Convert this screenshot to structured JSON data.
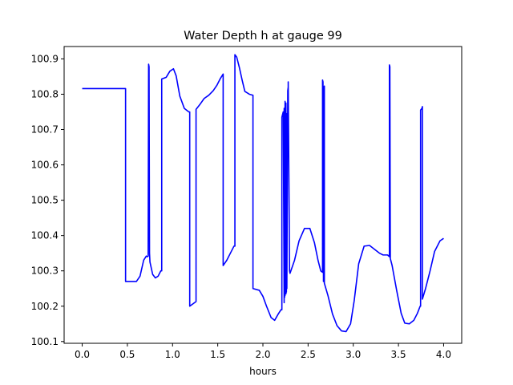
{
  "chart_data": {
    "type": "line",
    "title": "Water Depth h at gauge 99",
    "xlabel": "hours",
    "ylabel": "",
    "xlim": [
      -0.2,
      4.2
    ],
    "ylim": [
      100.095,
      100.935
    ],
    "xticks": [
      0.0,
      0.5,
      1.0,
      1.5,
      2.0,
      2.5,
      3.0,
      3.5,
      4.0
    ],
    "xtick_labels": [
      "0.0",
      "0.5",
      "1.0",
      "1.5",
      "2.0",
      "2.5",
      "3.0",
      "3.5",
      "4.0"
    ],
    "yticks": [
      100.1,
      100.2,
      100.3,
      100.4,
      100.5,
      100.6,
      100.7,
      100.8,
      100.9
    ],
    "ytick_labels": [
      "100.1",
      "100.2",
      "100.3",
      "100.4",
      "100.5",
      "100.6",
      "100.7",
      "100.8",
      "100.9"
    ],
    "grid": false,
    "legend": "none",
    "series": [
      {
        "color": "#0000ff",
        "x": [
          0.0,
          0.47,
          0.48,
          0.48,
          0.6,
          0.64,
          0.68,
          0.71,
          0.72,
          0.73,
          0.735,
          0.74,
          0.745,
          0.75,
          0.78,
          0.81,
          0.84,
          0.87,
          0.88,
          0.88,
          0.93,
          0.97,
          1.01,
          1.04,
          1.08,
          1.13,
          1.18,
          1.19,
          1.19,
          1.26,
          1.26,
          1.3,
          1.35,
          1.4,
          1.45,
          1.49,
          1.53,
          1.56,
          1.56,
          1.6,
          1.64,
          1.67,
          1.68,
          1.69,
          1.69,
          1.71,
          1.74,
          1.77,
          1.8,
          1.85,
          1.89,
          1.89,
          1.96,
          2.0,
          2.04,
          2.09,
          2.13,
          2.17,
          2.2,
          2.21,
          2.21,
          2.225,
          2.235,
          2.235,
          2.24,
          2.245,
          2.245,
          2.25,
          2.255,
          2.255,
          2.26,
          2.265,
          2.265,
          2.275,
          2.28,
          2.28,
          2.295,
          2.3,
          2.3,
          2.35,
          2.4,
          2.46,
          2.52,
          2.57,
          2.61,
          2.64,
          2.66,
          2.66,
          2.665,
          2.67,
          2.675,
          2.68,
          2.68,
          2.72,
          2.77,
          2.82,
          2.87,
          2.92,
          2.97,
          3.01,
          3.06,
          3.12,
          3.18,
          3.24,
          3.29,
          3.33,
          3.38,
          3.4,
          3.4,
          3.405,
          3.41,
          3.43,
          3.48,
          3.53,
          3.57,
          3.62,
          3.67,
          3.71,
          3.74,
          3.745,
          3.745,
          3.76,
          3.765,
          3.765,
          3.8,
          3.85,
          3.9,
          3.96,
          4.0
        ],
        "y": [
          100.816,
          100.816,
          100.816,
          100.27,
          100.27,
          100.285,
          100.33,
          100.342,
          100.34,
          100.342,
          100.885,
          100.878,
          100.35,
          100.325,
          100.29,
          100.28,
          100.285,
          100.3,
          100.3,
          100.843,
          100.848,
          100.865,
          100.872,
          100.852,
          100.795,
          100.76,
          100.75,
          100.75,
          100.2,
          100.213,
          100.757,
          100.77,
          100.788,
          100.797,
          100.81,
          100.825,
          100.845,
          100.857,
          100.315,
          100.33,
          100.35,
          100.365,
          100.37,
          100.37,
          100.912,
          100.905,
          100.875,
          100.84,
          100.808,
          100.8,
          100.797,
          100.25,
          100.245,
          100.228,
          100.2,
          100.168,
          100.16,
          100.178,
          100.19,
          100.19,
          100.735,
          100.75,
          100.21,
          100.76,
          100.225,
          100.78,
          100.23,
          100.755,
          100.235,
          100.775,
          100.24,
          100.745,
          100.25,
          100.81,
          100.82,
          100.835,
          100.3,
          100.293,
          100.293,
          100.33,
          100.385,
          100.42,
          100.42,
          100.38,
          100.33,
          100.3,
          100.296,
          100.84,
          100.835,
          100.27,
          100.82,
          100.823,
          100.265,
          100.23,
          100.178,
          100.145,
          100.13,
          100.128,
          100.15,
          100.215,
          100.32,
          100.37,
          100.372,
          100.36,
          100.35,
          100.345,
          100.345,
          100.34,
          100.883,
          100.878,
          100.335,
          100.315,
          100.245,
          100.18,
          100.152,
          100.15,
          100.16,
          100.18,
          100.2,
          100.2,
          100.755,
          100.76,
          100.765,
          100.22,
          100.25,
          100.3,
          100.355,
          100.385,
          100.392
        ]
      }
    ]
  }
}
